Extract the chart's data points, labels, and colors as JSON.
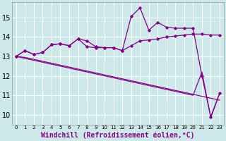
{
  "xlabel": "Windchill (Refroidissement éolien,°C)",
  "hours": [
    0,
    1,
    2,
    3,
    4,
    5,
    6,
    7,
    8,
    9,
    10,
    11,
    12,
    13,
    14,
    15,
    16,
    17,
    18,
    19,
    20,
    21,
    22,
    23
  ],
  "line_spiky": [
    13.0,
    13.3,
    13.1,
    13.2,
    13.6,
    13.65,
    13.55,
    13.9,
    13.8,
    13.5,
    13.45,
    13.45,
    13.3,
    15.05,
    15.5,
    14.35,
    14.75,
    14.5,
    14.45,
    14.45,
    14.45,
    12.0,
    9.9,
    11.1
  ],
  "line_smooth_upper": [
    13.0,
    13.3,
    13.1,
    13.2,
    13.6,
    13.65,
    13.55,
    13.9,
    13.5,
    13.45,
    13.45,
    13.45,
    13.3,
    13.55,
    13.8,
    13.85,
    13.9,
    14.0,
    14.05,
    14.1,
    14.15,
    14.15,
    14.1,
    14.1
  ],
  "line_lower1": [
    13.0,
    12.95,
    12.85,
    12.75,
    12.65,
    12.55,
    12.45,
    12.35,
    12.25,
    12.15,
    12.05,
    11.95,
    11.85,
    11.75,
    11.65,
    11.55,
    11.45,
    11.35,
    11.25,
    11.15,
    11.05,
    10.95,
    10.85,
    10.75
  ],
  "line_lower2": [
    13.0,
    12.9,
    12.8,
    12.7,
    12.6,
    12.5,
    12.4,
    12.3,
    12.2,
    12.1,
    12.0,
    11.9,
    11.8,
    11.7,
    11.6,
    11.5,
    11.4,
    11.3,
    11.2,
    11.1,
    11.0,
    12.2,
    9.85,
    11.1
  ],
  "line_color": "#880088",
  "bg_color": "#cce8e8",
  "grid_color": "#ffffff",
  "ylim": [
    9.5,
    15.8
  ],
  "yticks": [
    10,
    11,
    12,
    13,
    14,
    15
  ],
  "tick_fontsize": 7,
  "xlabel_fontsize": 7
}
